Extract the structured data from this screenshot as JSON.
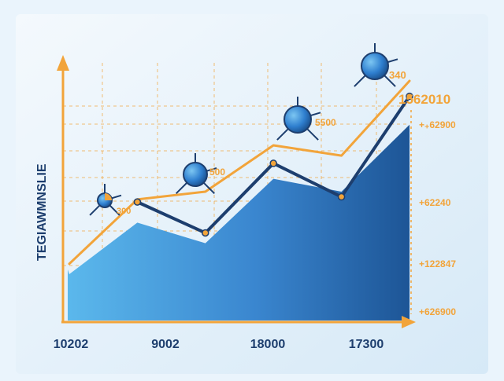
{
  "chart_data": {
    "type": "area",
    "title": "",
    "ylabel": "TEGIAWMNSLIE",
    "xlabel": "",
    "grid": true,
    "x_tick_labels": [
      "10202",
      "9002",
      "18000",
      "17300"
    ],
    "right_tick_labels": [
      "+₊62900",
      "+62240",
      "+122847",
      "+626900"
    ],
    "callouts": [
      {
        "label": "340"
      },
      {
        "label": "1562010"
      },
      {
        "label": "5500"
      },
      {
        "label": "500"
      },
      {
        "label": "300"
      }
    ],
    "series": [
      {
        "type": "area",
        "color": "#3a7fc8",
        "values": [
          18,
          38,
          30,
          55,
          50,
          76
        ]
      },
      {
        "type": "line",
        "color": "#f2a43a",
        "values": [
          22,
          47,
          50,
          68,
          64,
          93
        ]
      },
      {
        "type": "line",
        "color": "#1d3e6e",
        "values": [
          46,
          34,
          61,
          48,
          87
        ]
      }
    ]
  },
  "colors": {
    "axis": "#f2a43a",
    "grid": "#f2a43a",
    "label": "#1d3e6e",
    "accent": "#f2a43a"
  }
}
